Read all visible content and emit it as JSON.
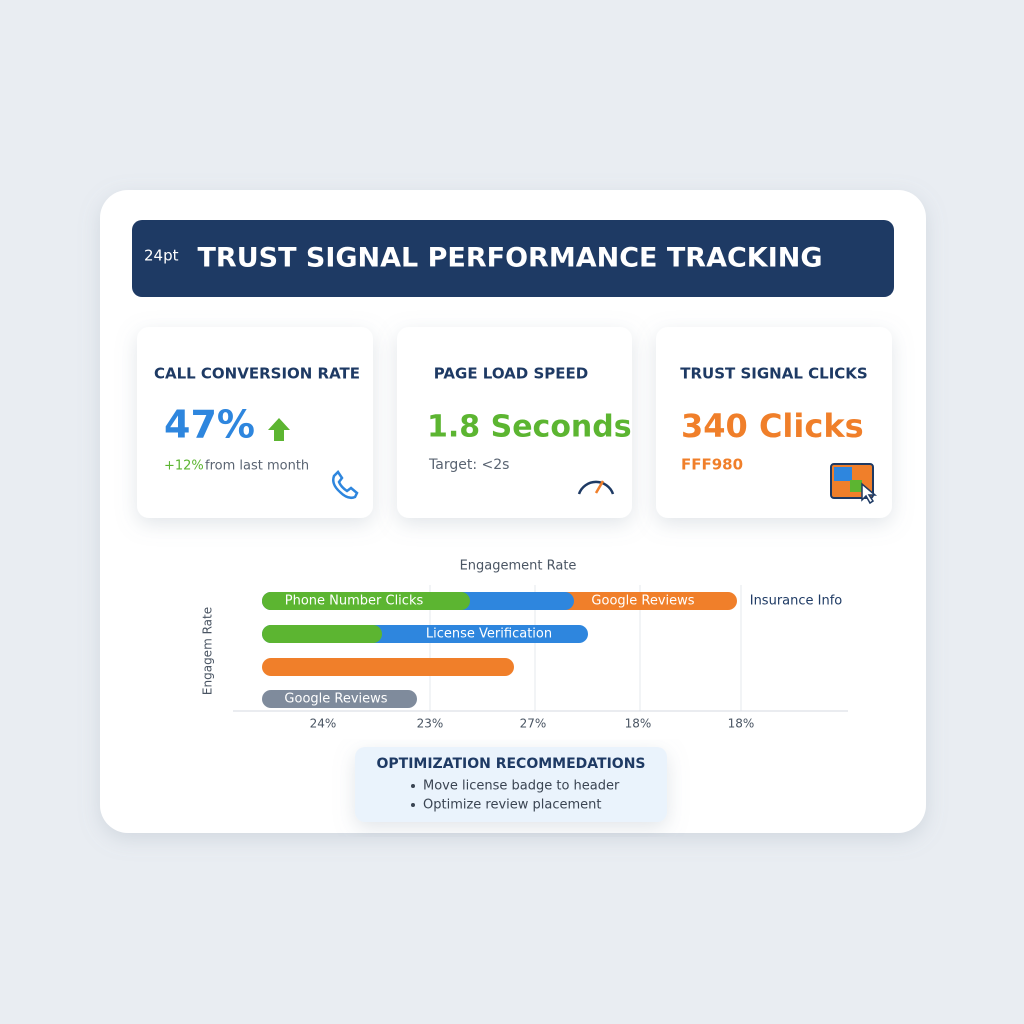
{
  "header": {
    "size_note": "24pt",
    "title": "TRUST SIGNAL PERFORMANCE TRACKING"
  },
  "cards": [
    {
      "label": "CALL CONVERSION RATE",
      "value": "47%",
      "change": "+12%",
      "note": "from last month"
    },
    {
      "label": "PAGE LOAD SPEED",
      "value": "1.8 Seconds",
      "note": "Target: <2s"
    },
    {
      "label": "TRUST SIGNAL CLICKS",
      "value": "340 Clicks",
      "note": "FFF980"
    }
  ],
  "engagement": {
    "title": "Engagement Rate",
    "y_label": "Engagem Rate",
    "bar_labels": [
      "Phone Number Clicks",
      "Google Reviews",
      "Insurance Info",
      "License Verification",
      "Google Reviews"
    ],
    "x_labels": [
      "24%",
      "23%",
      "27%",
      "18%",
      "18%"
    ]
  },
  "recommendations": {
    "title": "OPTIMIZATION RECOMMEDATIONS",
    "items": [
      "Move license badge to header",
      "Optimize review placement"
    ]
  }
}
